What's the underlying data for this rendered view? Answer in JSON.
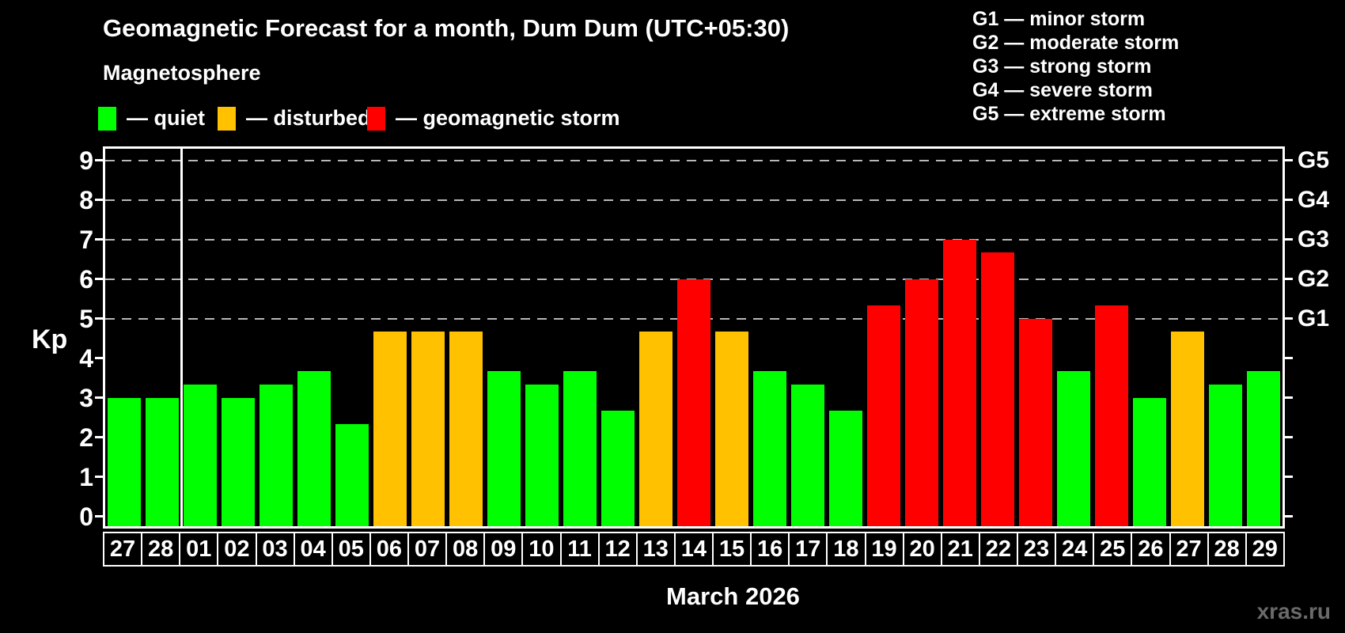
{
  "header": {
    "title": "Geomagnetic Forecast for a month, Dum Dum (UTC+05:30)",
    "subtitle": "Magnetosphere"
  },
  "legend": {
    "items": [
      {
        "status": "quiet",
        "label": "— quiet"
      },
      {
        "status": "disturbed",
        "label": "— disturbed"
      },
      {
        "status": "storm",
        "label": "— geomagnetic storm"
      }
    ]
  },
  "storm_legend": {
    "items": [
      "G1 — minor storm",
      "G2 — moderate storm",
      "G3 — strong storm",
      "G4 — severe storm",
      "G5 — extreme storm"
    ]
  },
  "chart_data": {
    "type": "bar",
    "title": "Geomagnetic Forecast for a month, Dum Dum (UTC+05:30)",
    "ylabel": "Kp",
    "xlabel": "March 2026",
    "ylim": [
      0,
      9.35
    ],
    "yticks": [
      "0",
      "1",
      "2",
      "3",
      "4",
      "5",
      "6",
      "7",
      "8",
      "9"
    ],
    "gridlines_kp": [
      5,
      6,
      7,
      8,
      9
    ],
    "right_axis_labels": [
      {
        "label": "G1",
        "kp": 5
      },
      {
        "label": "G2",
        "kp": 6
      },
      {
        "label": "G3",
        "kp": 7
      },
      {
        "label": "G4",
        "kp": 8
      },
      {
        "label": "G5",
        "kp": 9
      }
    ],
    "separator_index": 2,
    "categories": [
      "27",
      "28",
      "01",
      "02",
      "03",
      "04",
      "05",
      "06",
      "07",
      "08",
      "09",
      "10",
      "11",
      "12",
      "13",
      "14",
      "15",
      "16",
      "17",
      "18",
      "19",
      "20",
      "21",
      "22",
      "23",
      "24",
      "25",
      "26",
      "27",
      "28",
      "29"
    ],
    "values": [
      3.0,
      3.0,
      3.33,
      3.0,
      3.33,
      3.67,
      2.33,
      4.67,
      4.67,
      4.67,
      3.67,
      3.33,
      3.67,
      2.67,
      4.67,
      6.0,
      4.67,
      3.67,
      3.33,
      2.67,
      5.33,
      6.0,
      7.0,
      6.67,
      5.0,
      3.67,
      5.33,
      3.0,
      4.67,
      3.33,
      3.67
    ],
    "statuses": [
      "quiet",
      "quiet",
      "quiet",
      "quiet",
      "quiet",
      "quiet",
      "quiet",
      "disturbed",
      "disturbed",
      "disturbed",
      "quiet",
      "quiet",
      "quiet",
      "quiet",
      "disturbed",
      "storm",
      "disturbed",
      "quiet",
      "quiet",
      "quiet",
      "storm",
      "storm",
      "storm",
      "storm",
      "storm",
      "quiet",
      "storm",
      "quiet",
      "disturbed",
      "quiet",
      "quiet"
    ],
    "legend_position": "top-left",
    "grid": "dashed horizontal at G-storm levels only"
  },
  "footer": {
    "month_label": "March 2026",
    "watermark": "xras.ru"
  },
  "colors": {
    "quiet": "#00ff00",
    "disturbed": "#ffc100",
    "storm": "#ff0000",
    "background": "#000000",
    "axis": "#ffffff",
    "grid": "#b8b8b8",
    "watermark": "#6a6a6a"
  }
}
